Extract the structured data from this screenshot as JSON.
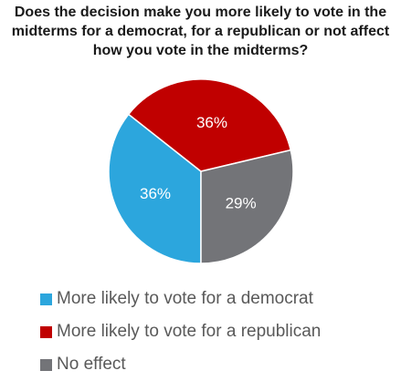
{
  "title": [
    "Does the decision make you more likely to vote in the",
    "midterms for a democrat, for a republican or not affect",
    "how you vote in the midterms?"
  ],
  "chart_data": {
    "type": "pie",
    "title": "Does the decision make you more likely to vote in the midterms for a democrat, for a republican or not affect how you vote in the midterms?",
    "slices": [
      {
        "label": "More likely to vote for a democrat",
        "value": 36,
        "display": "36%",
        "color": "#2CA6DD"
      },
      {
        "label": "More likely to vote for a republican",
        "value": 36,
        "display": "36%",
        "color": "#C00000"
      },
      {
        "label": "No effect",
        "value": 29,
        "display": "29%",
        "color": "#737478"
      }
    ],
    "legend": "bottom"
  }
}
